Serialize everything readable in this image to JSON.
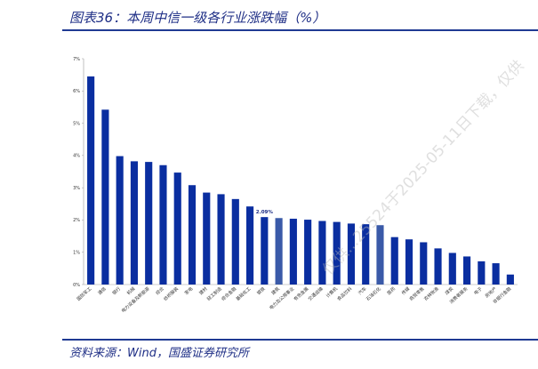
{
  "header": {
    "title": "图表36：本周中信一级各行业涨跌幅（%）"
  },
  "footer": {
    "source": "资料来源：Wind，国盛证券研究所"
  },
  "watermark": {
    "text": "仅供...25524于2025-05-11日下载，仅供"
  },
  "colors": {
    "bar": "#0a2ea0",
    "bar_highlight": "#3a5aa8",
    "rule": "#1f3a93",
    "title": "#1f2f86"
  },
  "chart_data": {
    "type": "bar",
    "title": "",
    "xlabel": "",
    "ylabel": "",
    "ylim": [
      0,
      7
    ],
    "yticks": [
      "0%",
      "1%",
      "2%",
      "3%",
      "4%",
      "5%",
      "6%",
      "7%"
    ],
    "grid": false,
    "legend": "none",
    "categories": [
      "国防军工",
      "通信",
      "银行",
      "机械",
      "电力设备及新能源",
      "综合",
      "纺织服装",
      "家电",
      "建材",
      "轻工制造",
      "综合金融",
      "基础化工",
      "钢铁",
      "建筑",
      "电力及公用事业",
      "有色金属",
      "交通运输",
      "计算机",
      "食品饮料",
      "汽车",
      "石油石化",
      "医药",
      "传媒",
      "商贸零售",
      "农林牧渔",
      "煤炭",
      "消费者服务",
      "电子",
      "房地产",
      "非银行金融"
    ],
    "values": [
      6.45,
      5.42,
      3.98,
      3.82,
      3.8,
      3.7,
      3.47,
      3.08,
      2.85,
      2.8,
      2.65,
      2.42,
      2.09,
      2.06,
      2.04,
      2.01,
      1.97,
      1.94,
      1.89,
      1.87,
      1.84,
      1.47,
      1.4,
      1.31,
      1.12,
      0.98,
      0.87,
      0.72,
      0.66,
      0.31
    ],
    "highlight_index": [
      13,
      20
    ],
    "annotations": [
      {
        "category_index": 12,
        "text": "2.09%"
      }
    ]
  }
}
